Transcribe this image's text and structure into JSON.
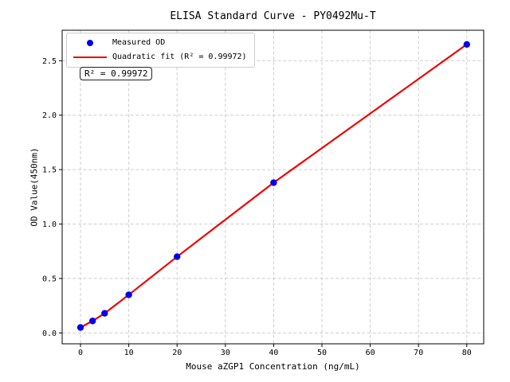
{
  "figure": {
    "background": "#ffffff",
    "axis_color": "#000000",
    "grid_color": "#cdcdcd"
  },
  "chart_data": {
    "type": "scatter",
    "title": "ELISA Standard Curve - PY0492Mu-T",
    "xlabel": "Mouse aZGP1 Concentration (ng/mL)",
    "ylabel": "OD Value(450nm)",
    "series": [
      {
        "name": "Measured OD",
        "type": "scatter",
        "color": "#0000ee",
        "marker": "circle",
        "x": [
          0,
          2.5,
          5,
          10,
          20,
          40,
          80
        ],
        "y": [
          0.05,
          0.11,
          0.18,
          0.35,
          0.7,
          1.38,
          2.65
        ]
      },
      {
        "name": "Quadratic fit (R² = 0.99972)",
        "type": "line",
        "color": "#ee0000",
        "r_squared": 0.99972
      }
    ],
    "xlim": [
      -3.8,
      83.5
    ],
    "ylim": [
      -0.1,
      2.78
    ],
    "xticks": [
      0,
      10,
      20,
      30,
      40,
      50,
      60,
      70,
      80
    ],
    "ytick_labels": [
      "0.0",
      "0.5",
      "1.0",
      "1.5",
      "2.0",
      "2.5"
    ],
    "grid": true,
    "legend_position": "upper left",
    "annotation": "R² = 0.99972"
  }
}
